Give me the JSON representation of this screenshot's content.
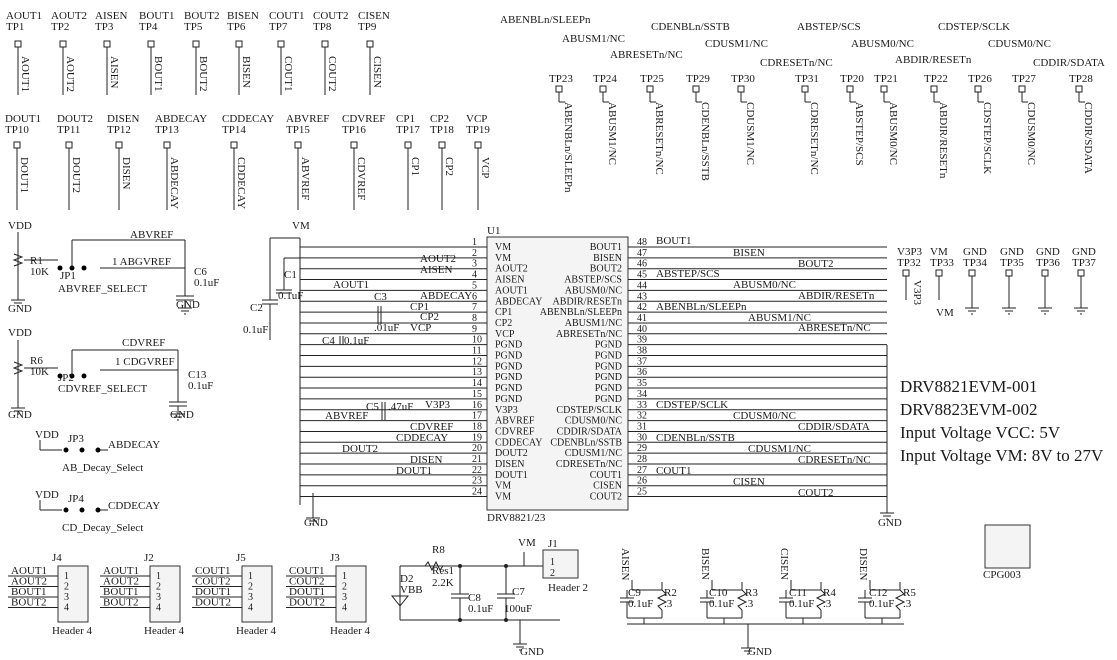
{
  "test_points_row1": [
    {
      "tp": "TP1",
      "net": "AOUT1"
    },
    {
      "tp": "TP2",
      "net": "AOUT2"
    },
    {
      "tp": "TP3",
      "net": "AISEN"
    },
    {
      "tp": "TP4",
      "net": "BOUT1"
    },
    {
      "tp": "TP5",
      "net": "BOUT2"
    },
    {
      "tp": "TP6",
      "net": "BISEN"
    },
    {
      "tp": "TP7",
      "net": "COUT1"
    },
    {
      "tp": "TP8",
      "net": "COUT2"
    },
    {
      "tp": "TP9",
      "net": "CISEN"
    }
  ],
  "test_points_row2": [
    {
      "tp": "TP10",
      "net": "DOUT1"
    },
    {
      "tp": "TP11",
      "net": "DOUT2"
    },
    {
      "tp": "TP12",
      "net": "DISEN"
    },
    {
      "tp": "TP13",
      "net": "ABDECAY"
    },
    {
      "tp": "TP14",
      "net": "CDDECAY"
    },
    {
      "tp": "TP15",
      "net": "ABVREF"
    },
    {
      "tp": "TP16",
      "net": "CDVREF"
    },
    {
      "tp": "TP17",
      "net": "CP1"
    },
    {
      "tp": "TP18",
      "net": "CP2"
    },
    {
      "tp": "TP19",
      "net": "VCP"
    }
  ],
  "test_points_top_right": [
    {
      "tp": "TP23",
      "net": "ABENBLn/SLEEPn"
    },
    {
      "tp": "TP24",
      "net": "ABUSM1/NC"
    },
    {
      "tp": "TP25",
      "net": "ABRESETn/NC"
    },
    {
      "tp": "TP29",
      "net": "CDENBLn/SSTB"
    },
    {
      "tp": "TP30",
      "net": "CDUSM1/NC"
    },
    {
      "tp": "TP31",
      "net": "CDRESETn/NC"
    },
    {
      "tp": "TP20",
      "net": "ABSTEP/SCS"
    },
    {
      "tp": "TP21",
      "net": "ABUSM0/NC"
    },
    {
      "tp": "TP22",
      "net": "ABDIR/RESETn"
    },
    {
      "tp": "TP26",
      "net": "CDSTEP/SCLK"
    },
    {
      "tp": "TP27",
      "net": "CDUSM0/NC"
    },
    {
      "tp": "TP28",
      "net": "CDDIR/SDATA"
    }
  ],
  "test_points_power": [
    {
      "tp": "TP32",
      "net": "V3P3"
    },
    {
      "tp": "TP33",
      "net": "VM"
    },
    {
      "tp": "TP34",
      "net": "GND"
    },
    {
      "tp": "TP35",
      "net": "GND"
    },
    {
      "tp": "TP36",
      "net": "GND"
    },
    {
      "tp": "TP37",
      "net": "GND"
    }
  ],
  "u1": {
    "ref": "U1",
    "part": "DRV8821/23",
    "pins_left": [
      {
        "num": "1",
        "name": "VM"
      },
      {
        "num": "2",
        "name": "VM"
      },
      {
        "num": "3",
        "name": "AOUT2"
      },
      {
        "num": "4",
        "name": "AISEN"
      },
      {
        "num": "5",
        "name": "AOUT1"
      },
      {
        "num": "6",
        "name": "ABDECAY"
      },
      {
        "num": "7",
        "name": "CP1"
      },
      {
        "num": "8",
        "name": "CP2"
      },
      {
        "num": "9",
        "name": "VCP"
      },
      {
        "num": "10",
        "name": "PGND"
      },
      {
        "num": "11",
        "name": "PGND"
      },
      {
        "num": "12",
        "name": "PGND"
      },
      {
        "num": "13",
        "name": "PGND"
      },
      {
        "num": "14",
        "name": "PGND"
      },
      {
        "num": "15",
        "name": "PGND"
      },
      {
        "num": "16",
        "name": "V3P3"
      },
      {
        "num": "17",
        "name": "ABVREF"
      },
      {
        "num": "18",
        "name": "CDVREF"
      },
      {
        "num": "19",
        "name": "CDDECAY"
      },
      {
        "num": "20",
        "name": "DOUT2"
      },
      {
        "num": "21",
        "name": "DISEN"
      },
      {
        "num": "22",
        "name": "DOUT1"
      },
      {
        "num": "23",
        "name": "VM"
      },
      {
        "num": "24",
        "name": "VM"
      }
    ],
    "pins_right": [
      {
        "num": "48",
        "name": "BOUT1"
      },
      {
        "num": "47",
        "name": "BISEN"
      },
      {
        "num": "46",
        "name": "BOUT2"
      },
      {
        "num": "45",
        "name": "ABSTEP/SCS"
      },
      {
        "num": "44",
        "name": "ABUSM0/NC"
      },
      {
        "num": "43",
        "name": "ABDIR/RESETn"
      },
      {
        "num": "42",
        "name": "ABENBLn/SLEEPn"
      },
      {
        "num": "41",
        "name": "ABUSM1/NC"
      },
      {
        "num": "40",
        "name": "ABRESETn/NC"
      },
      {
        "num": "39",
        "name": "PGND"
      },
      {
        "num": "38",
        "name": "PGND"
      },
      {
        "num": "37",
        "name": "PGND"
      },
      {
        "num": "36",
        "name": "PGND"
      },
      {
        "num": "35",
        "name": "PGND"
      },
      {
        "num": "34",
        "name": "PGND"
      },
      {
        "num": "33",
        "name": "CDSTEP/SCLK"
      },
      {
        "num": "32",
        "name": "CDUSM0/NC"
      },
      {
        "num": "31",
        "name": "CDDIR/SDATA"
      },
      {
        "num": "30",
        "name": "CDENBLn/SSTB"
      },
      {
        "num": "29",
        "name": "CDUSM1/NC"
      },
      {
        "num": "28",
        "name": "CDRESETn/NC"
      },
      {
        "num": "27",
        "name": "COUT1"
      },
      {
        "num": "26",
        "name": "CISEN"
      },
      {
        "num": "25",
        "name": "COUT2"
      }
    ]
  },
  "nets_left": [
    "AOUT2",
    "AISEN",
    "AOUT1",
    "ABDECAY",
    "CP1",
    "CP2",
    "VCP",
    "V3P3",
    "ABVREF",
    "CDVREF",
    "CDDECAY",
    "DOUT2",
    "DISEN",
    "DOUT1"
  ],
  "nets_right": [
    "BOUT1",
    "BISEN",
    "BOUT2",
    "ABSTEP/SCS",
    "ABUSM0/NC",
    "ABDIR/RESETn",
    "ABENBLn/SLEEPn",
    "ABUSM1/NC",
    "ABRESETn/NC",
    "CDSTEP/SCLK",
    "CDUSM0/NC",
    "CDDIR/SDATA",
    "CDENBLn/SSTB",
    "CDUSM1/NC",
    "CDRESETn/NC",
    "COUT1",
    "CISEN",
    "COUT2"
  ],
  "notes": [
    "DRV8821EVM-001",
    "DRV8823EVM-002",
    "Input Voltage VCC: 5V",
    "Input Voltage VM: 8V to 27V"
  ],
  "components": [
    "VDD",
    "GND",
    "R1",
    "10K",
    "JP1",
    "ABVREF_SELECT",
    "ABVREF",
    "1 ABGVREF",
    "C6",
    "0.1uF",
    "GND",
    "VDD",
    "GND",
    "R6",
    "10K",
    "JP2",
    "CDVREF_SELECT",
    "CDVREF",
    "1 CDGVREF",
    "C13",
    "0.1uF",
    "GND",
    "VDD",
    "JP3",
    "ABDECAY",
    "AB_Decay_Select",
    "VDD",
    "JP4",
    "CDDECAY",
    "CD_Decay_Select",
    "VM",
    "C1",
    "0.1uF",
    "C2",
    "0.1uF",
    "C3",
    ".01uF",
    "C4",
    "0.1uF",
    "C5",
    ".47uF",
    "GND",
    "GND",
    "R8",
    "Res1",
    "2.2K",
    "D2",
    "VBB",
    "C8",
    "0.1uF",
    "C7",
    "100uF",
    "VM",
    "J1",
    "Header 2",
    "GND",
    "C9",
    "0.1uF",
    "R2",
    ".3",
    "C10",
    "0.1uF",
    "R3",
    ".3",
    "C11",
    "0.1uF",
    "R4",
    ".3",
    "C12",
    "0.1uF",
    "R5",
    ".3",
    "GND",
    "CPG003"
  ],
  "sense_nets": [
    "AISEN",
    "BISEN",
    "CISEN",
    "DISEN"
  ],
  "headers": [
    {
      "ref": "J4",
      "type": "Header 4",
      "nets": [
        "AOUT1",
        "AOUT2",
        "BOUT1",
        "BOUT2"
      ]
    },
    {
      "ref": "J2",
      "type": "Header 4",
      "nets": [
        "AOUT1",
        "AOUT2",
        "BOUT1",
        "BOUT2"
      ]
    },
    {
      "ref": "J5",
      "type": "Header 4",
      "nets": [
        "COUT1",
        "COUT2",
        "DOUT1",
        "DOUT2"
      ]
    },
    {
      "ref": "J3",
      "type": "Header 4",
      "nets": [
        "COUT1",
        "COUT2",
        "DOUT1",
        "DOUT2"
      ]
    }
  ],
  "header_pin_numbers": [
    "1",
    "2",
    "3",
    "4"
  ],
  "j1_pin_numbers": [
    "1",
    "2"
  ]
}
